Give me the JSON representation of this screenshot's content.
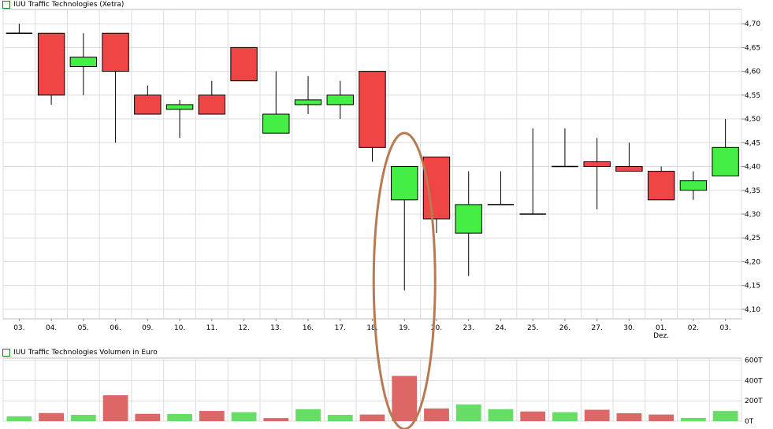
{
  "colors": {
    "up": "#44ee44",
    "down": "#f04545",
    "vol_up": "#66dd66",
    "vol_down": "#dd6666",
    "grid": "#dcdcdc",
    "frame": "#bbbbbb",
    "highlight_ellipse": "#b87a52"
  },
  "chart_data": [
    {
      "type": "candlestick",
      "title": "IUU Traffic Technologies (Xetra)",
      "legend_position": "top-left",
      "grid": true,
      "y_axis_position": "right",
      "ylim": [
        4.08,
        4.73
      ],
      "yticks": [
        4.1,
        4.15,
        4.2,
        4.25,
        4.3,
        4.35,
        4.4,
        4.45,
        4.5,
        4.55,
        4.6,
        4.65,
        4.7
      ],
      "ytick_labels": [
        "4,10",
        "4,15",
        "4,20",
        "4,25",
        "4,30",
        "4,35",
        "4,40",
        "4,45",
        "4,50",
        "4,55",
        "4,60",
        "4,65",
        "4,70"
      ],
      "categories": [
        "03.",
        "04.",
        "05.",
        "06.",
        "09.",
        "10.",
        "11.",
        "12.",
        "13.",
        "16.",
        "17.",
        "18.",
        "19.",
        "20.",
        "23.",
        "24.",
        "25.",
        "26.",
        "27.",
        "30.",
        "01.",
        "02.",
        "03."
      ],
      "month_label": {
        "category_index": 20,
        "text": "Dez."
      },
      "ohlc": [
        {
          "o": 4.68,
          "h": 4.7,
          "l": 4.68,
          "c": 4.68
        },
        {
          "o": 4.68,
          "h": 4.68,
          "l": 4.53,
          "c": 4.55
        },
        {
          "o": 4.61,
          "h": 4.68,
          "l": 4.55,
          "c": 4.63
        },
        {
          "o": 4.68,
          "h": 4.68,
          "l": 4.45,
          "c": 4.6
        },
        {
          "o": 4.55,
          "h": 4.57,
          "l": 4.51,
          "c": 4.51
        },
        {
          "o": 4.52,
          "h": 4.54,
          "l": 4.46,
          "c": 4.53
        },
        {
          "o": 4.55,
          "h": 4.58,
          "l": 4.51,
          "c": 4.51
        },
        {
          "o": 4.65,
          "h": 4.65,
          "l": 4.58,
          "c": 4.58
        },
        {
          "o": 4.47,
          "h": 4.6,
          "l": 4.47,
          "c": 4.51
        },
        {
          "o": 4.53,
          "h": 4.59,
          "l": 4.51,
          "c": 4.54
        },
        {
          "o": 4.53,
          "h": 4.58,
          "l": 4.5,
          "c": 4.55
        },
        {
          "o": 4.6,
          "h": 4.6,
          "l": 4.41,
          "c": 4.44
        },
        {
          "o": 4.33,
          "h": 4.4,
          "l": 4.14,
          "c": 4.4
        },
        {
          "o": 4.42,
          "h": 4.42,
          "l": 4.26,
          "c": 4.29
        },
        {
          "o": 4.26,
          "h": 4.39,
          "l": 4.17,
          "c": 4.32
        },
        {
          "o": 4.32,
          "h": 4.39,
          "l": 4.32,
          "c": 4.32
        },
        {
          "o": 4.3,
          "h": 4.48,
          "l": 4.3,
          "c": 4.3
        },
        {
          "o": 4.4,
          "h": 4.48,
          "l": 4.4,
          "c": 4.4
        },
        {
          "o": 4.41,
          "h": 4.46,
          "l": 4.31,
          "c": 4.4
        },
        {
          "o": 4.4,
          "h": 4.45,
          "l": 4.39,
          "c": 4.39
        },
        {
          "o": 4.39,
          "h": 4.4,
          "l": 4.33,
          "c": 4.33
        },
        {
          "o": 4.35,
          "h": 4.39,
          "l": 4.33,
          "c": 4.37
        },
        {
          "o": 4.38,
          "h": 4.5,
          "l": 4.38,
          "c": 4.44
        }
      ]
    },
    {
      "type": "bar",
      "title": "IUU Traffic Technologies Volumen in Euro",
      "legend_position": "top-left",
      "grid": true,
      "y_axis_position": "right",
      "ylim": [
        0,
        620000
      ],
      "yticks": [
        0,
        200000,
        400000,
        600000
      ],
      "ytick_labels": [
        "0T",
        "200T",
        "400T",
        "600T"
      ],
      "categories": [
        "03.",
        "04.",
        "05.",
        "06.",
        "09.",
        "10.",
        "11.",
        "12.",
        "13.",
        "16.",
        "17.",
        "18.",
        "19.",
        "20.",
        "23.",
        "24.",
        "25.",
        "26.",
        "27.",
        "30.",
        "01.",
        "02.",
        "03."
      ],
      "values": [
        48000,
        80000,
        62000,
        255000,
        72000,
        70000,
        100000,
        88000,
        30000,
        118000,
        62000,
        65000,
        445000,
        125000,
        165000,
        118000,
        95000,
        88000,
        112000,
        78000,
        65000,
        32000,
        100000
      ],
      "direction": [
        "up",
        "down",
        "up",
        "down",
        "down",
        "up",
        "down",
        "up",
        "down",
        "up",
        "up",
        "down",
        "down",
        "down",
        "up",
        "up",
        "down",
        "up",
        "down",
        "down",
        "down",
        "up",
        "up"
      ]
    }
  ],
  "annotation": {
    "type": "ellipse",
    "around_category_index": 12,
    "color": "#b87a52"
  }
}
